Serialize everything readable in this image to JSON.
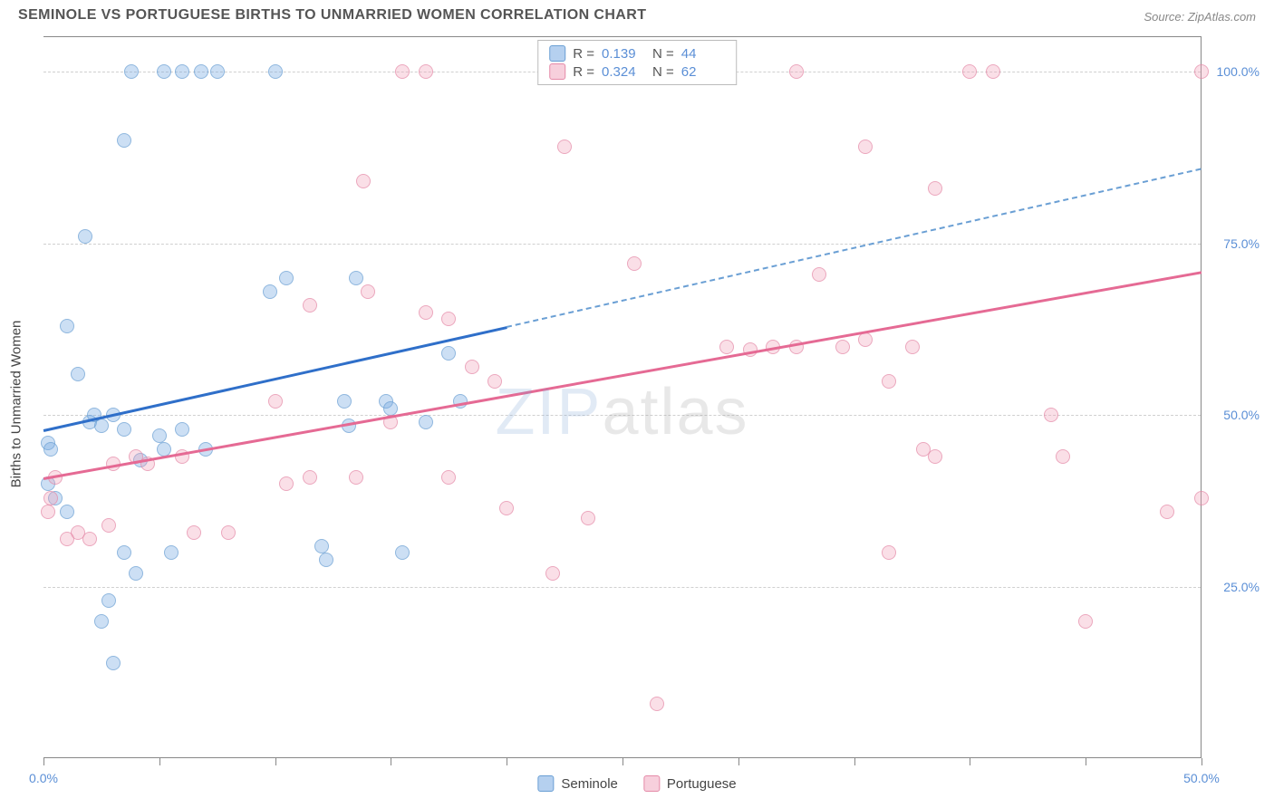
{
  "header": {
    "title": "SEMINOLE VS PORTUGUESE BIRTHS TO UNMARRIED WOMEN CORRELATION CHART",
    "source": "Source: ZipAtlas.com"
  },
  "watermark": {
    "part1": "ZIP",
    "part2": "atlas"
  },
  "axes": {
    "y_title": "Births to Unmarried Women",
    "y_ticks": [
      {
        "value": 25,
        "label": "25.0%"
      },
      {
        "value": 50,
        "label": "50.0%"
      },
      {
        "value": 75,
        "label": "75.0%"
      },
      {
        "value": 100,
        "label": "100.0%"
      }
    ],
    "x_ticks": [
      0,
      5,
      10,
      15,
      20,
      25,
      30,
      35,
      40,
      45,
      50
    ],
    "x_labels": [
      {
        "value": 0,
        "label": "0.0%"
      },
      {
        "value": 50,
        "label": "50.0%"
      }
    ],
    "xlim": [
      0,
      50
    ],
    "ylim": [
      0,
      105
    ],
    "grid_color": "#d0d0d0",
    "axis_color": "#888888",
    "label_color": "#5b8fd6"
  },
  "legend_stats": {
    "series": [
      {
        "swatch": "blue",
        "r_label": "R =",
        "r_value": "0.139",
        "n_label": "N =",
        "n_value": "44"
      },
      {
        "swatch": "pink",
        "r_label": "R =",
        "r_value": "0.324",
        "n_label": "N =",
        "n_value": "62"
      }
    ]
  },
  "bottom_legend": {
    "items": [
      {
        "swatch": "blue",
        "label": "Seminole"
      },
      {
        "swatch": "pink",
        "label": "Portuguese"
      }
    ]
  },
  "chart": {
    "type": "scatter",
    "background_color": "#ffffff",
    "marker_size": 16,
    "series": [
      {
        "name": "Seminole",
        "color_fill": "rgba(120,170,225,0.5)",
        "color_stroke": "#6a9fd4",
        "points": [
          [
            3.8,
            100
          ],
          [
            5.2,
            100
          ],
          [
            6.0,
            100
          ],
          [
            6.8,
            100
          ],
          [
            7.5,
            100
          ],
          [
            10.0,
            100
          ],
          [
            3.5,
            90
          ],
          [
            1.8,
            76
          ],
          [
            1.0,
            63
          ],
          [
            0.2,
            46
          ],
          [
            0.3,
            45
          ],
          [
            0.2,
            40
          ],
          [
            1.5,
            56
          ],
          [
            2.0,
            49
          ],
          [
            2.2,
            50
          ],
          [
            2.5,
            48.5
          ],
          [
            3.0,
            50
          ],
          [
            3.5,
            48
          ],
          [
            4.2,
            43.5
          ],
          [
            5.0,
            47
          ],
          [
            5.2,
            45
          ],
          [
            6.0,
            48
          ],
          [
            7.0,
            45
          ],
          [
            10.5,
            70
          ],
          [
            9.8,
            68
          ],
          [
            13.5,
            70
          ],
          [
            13.0,
            52
          ],
          [
            13.2,
            48.5
          ],
          [
            14.8,
            52
          ],
          [
            15.0,
            51
          ],
          [
            16.5,
            49
          ],
          [
            17.5,
            59
          ],
          [
            18.0,
            52
          ],
          [
            2.8,
            23
          ],
          [
            2.5,
            20
          ],
          [
            3.0,
            14
          ],
          [
            3.5,
            30
          ],
          [
            4.0,
            27
          ],
          [
            5.5,
            30
          ],
          [
            12.0,
            31
          ],
          [
            12.2,
            29
          ],
          [
            15.5,
            30
          ],
          [
            1.0,
            36
          ],
          [
            0.5,
            38
          ]
        ],
        "trend": {
          "x1": 0,
          "y1": 48,
          "x2": 20,
          "y2": 63,
          "color": "#2f6fc9",
          "width": 2.5
        },
        "trend_extrapolate": {
          "x1": 20,
          "y1": 63,
          "x2": 50,
          "y2": 86,
          "dash": true
        }
      },
      {
        "name": "Portuguese",
        "color_fill": "rgba(240,160,185,0.45)",
        "color_stroke": "#e58aa8",
        "points": [
          [
            15.5,
            100
          ],
          [
            16.5,
            100
          ],
          [
            25.0,
            100
          ],
          [
            25.8,
            100
          ],
          [
            26.5,
            100
          ],
          [
            27.0,
            100
          ],
          [
            29.0,
            100
          ],
          [
            32.5,
            100
          ],
          [
            40.0,
            100
          ],
          [
            41.0,
            100
          ],
          [
            50.0,
            100
          ],
          [
            22.5,
            89
          ],
          [
            13.8,
            84
          ],
          [
            35.5,
            89
          ],
          [
            38.5,
            83
          ],
          [
            25.5,
            72
          ],
          [
            33.5,
            70.5
          ],
          [
            11.5,
            66
          ],
          [
            14.0,
            68
          ],
          [
            16.5,
            65
          ],
          [
            17.5,
            64
          ],
          [
            29.5,
            60
          ],
          [
            30.5,
            59.5
          ],
          [
            31.5,
            60
          ],
          [
            32.5,
            60
          ],
          [
            34.5,
            60
          ],
          [
            35.5,
            61
          ],
          [
            37.5,
            60
          ],
          [
            43.5,
            50
          ],
          [
            18.5,
            57
          ],
          [
            19.5,
            55
          ],
          [
            36.5,
            55
          ],
          [
            38.0,
            45
          ],
          [
            38.5,
            44
          ],
          [
            44.0,
            44
          ],
          [
            36.5,
            30
          ],
          [
            48.5,
            36
          ],
          [
            50.0,
            38
          ],
          [
            45.0,
            20
          ],
          [
            0.5,
            41
          ],
          [
            0.3,
            38
          ],
          [
            0.2,
            36
          ],
          [
            1.5,
            33
          ],
          [
            1.0,
            32
          ],
          [
            2.0,
            32
          ],
          [
            2.8,
            34
          ],
          [
            3.0,
            43
          ],
          [
            4.0,
            44
          ],
          [
            4.5,
            43
          ],
          [
            6.0,
            44
          ],
          [
            6.5,
            33
          ],
          [
            8.0,
            33
          ],
          [
            10.5,
            40
          ],
          [
            11.5,
            41
          ],
          [
            13.5,
            41
          ],
          [
            17.5,
            41
          ],
          [
            20.0,
            36.5
          ],
          [
            15.0,
            49
          ],
          [
            22.0,
            27
          ],
          [
            23.5,
            35
          ],
          [
            10.0,
            52
          ],
          [
            26.5,
            8
          ]
        ],
        "trend": {
          "x1": 0,
          "y1": 41,
          "x2": 50,
          "y2": 71,
          "color": "#e56a94",
          "width": 2.5
        }
      }
    ]
  }
}
